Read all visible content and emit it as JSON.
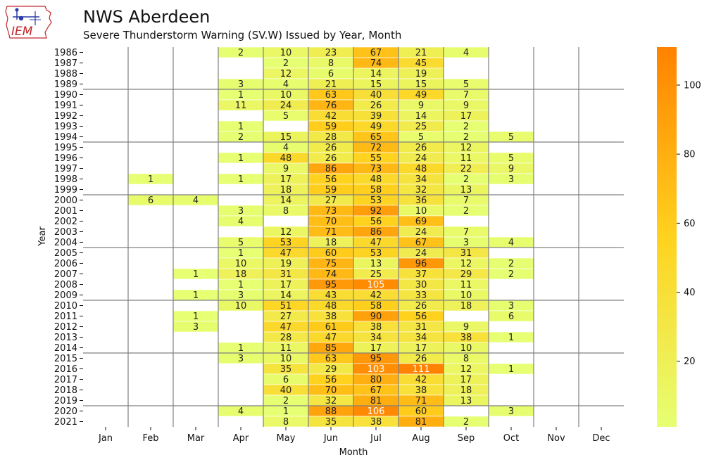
{
  "header": {
    "logo_text": "IEM",
    "title": "NWS Aberdeen",
    "subtitle": "Severe Thunderstorm Warning (SV.W) Issued by Year, Month"
  },
  "colors": {
    "low": "#e6ff73",
    "mid": "#ffd21e",
    "high": "#ff8200",
    "grid": "#808080",
    "logo_accent": "#c0282d",
    "logo_blue": "#2a3aa8"
  },
  "chart_data": {
    "type": "heatmap",
    "title": "NWS Aberdeen",
    "subtitle": "Severe Thunderstorm Warning (SV.W) Issued by Year, Month",
    "xlabel": "Month",
    "ylabel": "Year",
    "months": [
      "Jan",
      "Feb",
      "Mar",
      "Apr",
      "May",
      "Jun",
      "Jul",
      "Aug",
      "Sep",
      "Oct",
      "Nov",
      "Dec"
    ],
    "years": [
      "1986",
      "1987",
      "1988",
      "1989",
      "1990",
      "1991",
      "1992",
      "1993",
      "1994",
      "1995",
      "1996",
      "1997",
      "1998",
      "1999",
      "2000",
      "2001",
      "2002",
      "2003",
      "2004",
      "2005",
      "2006",
      "2007",
      "2008",
      "2009",
      "2010",
      "2011",
      "2012",
      "2013",
      "2014",
      "2015",
      "2016",
      "2017",
      "2018",
      "2019",
      "2020",
      "2021"
    ],
    "values": [
      [
        null,
        null,
        null,
        2,
        10,
        23,
        67,
        21,
        4,
        null,
        null,
        null
      ],
      [
        null,
        null,
        null,
        null,
        2,
        8,
        74,
        45,
        null,
        null,
        null,
        null
      ],
      [
        null,
        null,
        null,
        null,
        12,
        6,
        14,
        19,
        null,
        null,
        null,
        null
      ],
      [
        null,
        null,
        null,
        3,
        4,
        21,
        15,
        15,
        5,
        null,
        null,
        null
      ],
      [
        null,
        null,
        null,
        1,
        10,
        63,
        40,
        49,
        7,
        null,
        null,
        null
      ],
      [
        null,
        null,
        null,
        11,
        24,
        76,
        26,
        9,
        9,
        null,
        null,
        null
      ],
      [
        null,
        null,
        null,
        null,
        5,
        42,
        39,
        14,
        17,
        null,
        null,
        null
      ],
      [
        null,
        null,
        null,
        1,
        null,
        59,
        49,
        25,
        2,
        null,
        null,
        null
      ],
      [
        null,
        null,
        null,
        2,
        15,
        28,
        65,
        5,
        2,
        5,
        null,
        null
      ],
      [
        null,
        null,
        null,
        null,
        4,
        26,
        72,
        26,
        12,
        null,
        null,
        null
      ],
      [
        null,
        null,
        null,
        1,
        48,
        26,
        55,
        24,
        11,
        5,
        null,
        null
      ],
      [
        null,
        null,
        null,
        null,
        9,
        86,
        73,
        48,
        22,
        9,
        null,
        null
      ],
      [
        null,
        1,
        null,
        1,
        17,
        56,
        48,
        34,
        2,
        3,
        null,
        null
      ],
      [
        null,
        null,
        null,
        null,
        18,
        59,
        58,
        32,
        13,
        null,
        null,
        null
      ],
      [
        null,
        6,
        4,
        null,
        14,
        27,
        53,
        36,
        7,
        null,
        null,
        null
      ],
      [
        null,
        null,
        null,
        3,
        8,
        73,
        92,
        10,
        2,
        null,
        null,
        null
      ],
      [
        null,
        null,
        null,
        4,
        null,
        70,
        56,
        69,
        null,
        null,
        null,
        null
      ],
      [
        null,
        null,
        null,
        null,
        12,
        71,
        86,
        24,
        7,
        null,
        null,
        null
      ],
      [
        null,
        null,
        null,
        5,
        53,
        18,
        47,
        67,
        3,
        4,
        null,
        null
      ],
      [
        null,
        null,
        null,
        1,
        47,
        60,
        53,
        24,
        31,
        null,
        null,
        null
      ],
      [
        null,
        null,
        null,
        10,
        19,
        75,
        13,
        96,
        12,
        2,
        null,
        null
      ],
      [
        null,
        null,
        1,
        18,
        31,
        74,
        25,
        37,
        29,
        2,
        null,
        null
      ],
      [
        null,
        null,
        null,
        1,
        17,
        95,
        105,
        30,
        11,
        null,
        null,
        null
      ],
      [
        null,
        null,
        1,
        3,
        14,
        43,
        42,
        33,
        10,
        null,
        null,
        null
      ],
      [
        null,
        null,
        null,
        10,
        51,
        48,
        58,
        26,
        18,
        3,
        null,
        null
      ],
      [
        null,
        null,
        1,
        null,
        27,
        38,
        90,
        56,
        null,
        6,
        null,
        null
      ],
      [
        null,
        null,
        3,
        null,
        47,
        61,
        38,
        31,
        9,
        null,
        null,
        null
      ],
      [
        null,
        null,
        null,
        null,
        28,
        47,
        34,
        34,
        38,
        1,
        null,
        null
      ],
      [
        null,
        null,
        null,
        1,
        11,
        85,
        17,
        17,
        10,
        null,
        null,
        null
      ],
      [
        null,
        null,
        null,
        3,
        10,
        63,
        95,
        26,
        8,
        null,
        null,
        null
      ],
      [
        null,
        null,
        null,
        null,
        35,
        29,
        103,
        111,
        12,
        1,
        null,
        null
      ],
      [
        null,
        null,
        null,
        null,
        6,
        56,
        80,
        42,
        17,
        null,
        null,
        null
      ],
      [
        null,
        null,
        null,
        null,
        40,
        70,
        67,
        38,
        18,
        null,
        null,
        null
      ],
      [
        null,
        null,
        null,
        null,
        2,
        32,
        81,
        71,
        13,
        null,
        null,
        null
      ],
      [
        null,
        null,
        null,
        4,
        1,
        88,
        106,
        60,
        null,
        3,
        null,
        null
      ],
      [
        null,
        null,
        null,
        null,
        8,
        35,
        38,
        81,
        2,
        null,
        null,
        null
      ]
    ],
    "colorbar": {
      "min": 1,
      "max": 111,
      "ticks": [
        20,
        40,
        60,
        80,
        100
      ]
    },
    "grid": true,
    "legend": "colorbar-right"
  }
}
